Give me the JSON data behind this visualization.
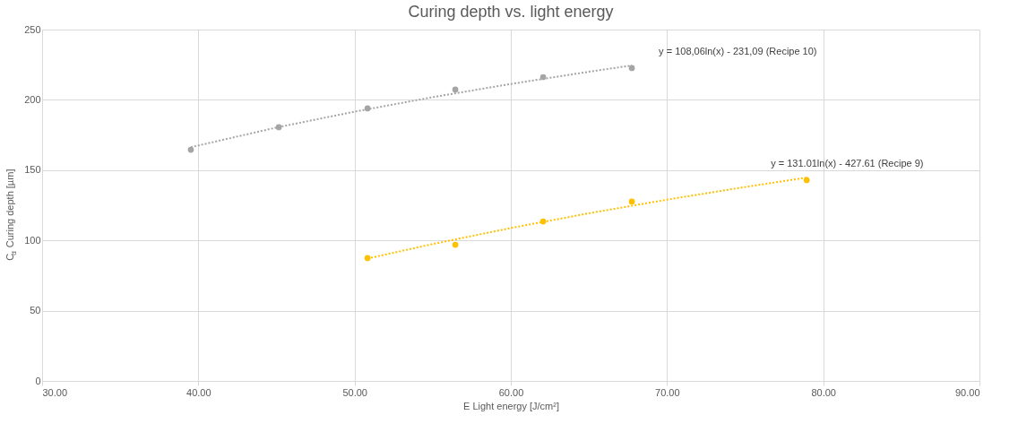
{
  "chart_data": {
    "type": "scatter",
    "title": "Curing depth vs. light energy",
    "xlabel": "E Light energy [J/cm²]",
    "ylabel": "C$_{d}$ Curing depth [µm]",
    "xlim": [
      30,
      90
    ],
    "xticks": [
      {
        "value": 30,
        "label": "30.00"
      },
      {
        "value": 40,
        "label": "40.00"
      },
      {
        "value": 50,
        "label": "50.00"
      },
      {
        "value": 60,
        "label": "60.00"
      },
      {
        "value": 70,
        "label": "70.00"
      },
      {
        "value": 80,
        "label": "80.00"
      },
      {
        "value": 90,
        "label": "90.00"
      }
    ],
    "ylim": [
      0,
      250
    ],
    "yticks": [
      0,
      50,
      100,
      150,
      200,
      250
    ],
    "grid": true,
    "series": [
      {
        "marker": "circle",
        "color": "#a5a5a5",
        "x": [
          39.52,
          45.15,
          50.83,
          56.45,
          62.07,
          67.75
        ],
        "values": [
          164.5,
          180.5,
          193.9,
          207.3,
          216.2,
          222.6
        ]
      },
      {
        "marker": "circle",
        "color": "#ffc000",
        "x": [
          50.83,
          56.45,
          62.07,
          67.75,
          78.94
        ],
        "values": [
          87.4,
          96.9,
          113.5,
          127.6,
          142.9
        ]
      },
      {
        "type": "line",
        "marker": "none",
        "line_style": "dotted",
        "color": "#a5a5a5",
        "x": [
          39.52,
          45,
          50,
          55,
          60,
          65,
          67.75
        ],
        "values": [
          166.3,
          180.3,
          191.6,
          201.9,
          211.3,
          220.0,
          224.5
        ]
      },
      {
        "type": "line",
        "marker": "none",
        "line_style": "dotted",
        "color": "#ffc000",
        "x": [
          50.83,
          55,
          60,
          65,
          70,
          75,
          78.94
        ],
        "values": [
          87.1,
          97.4,
          108.8,
          119.3,
          129.0,
          138.0,
          144.7
        ]
      }
    ],
    "annotations": [
      "y = 108,06ln(x) - 231,09 (Recipe 10)",
      "y = 131.01ln(x) - 427.61 (Recipe 9)"
    ]
  }
}
